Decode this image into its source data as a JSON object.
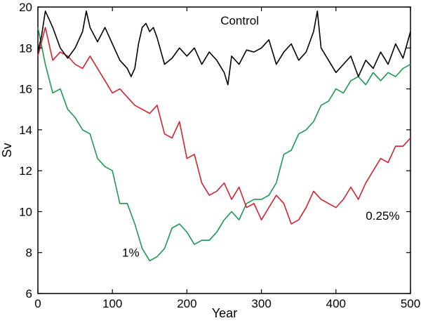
{
  "chart_data": {
    "type": "line",
    "xlabel": "Year",
    "ylabel": "Sv",
    "xlim": [
      0,
      500
    ],
    "ylim": [
      6,
      20
    ],
    "xticks": [
      0,
      100,
      200,
      300,
      400,
      500
    ],
    "yticks": [
      6,
      8,
      10,
      12,
      14,
      16,
      18,
      20
    ],
    "grid": false,
    "series": [
      {
        "name": "Control",
        "color": "#000000",
        "x": [
          0,
          5,
          10,
          20,
          30,
          40,
          50,
          60,
          65,
          70,
          80,
          90,
          100,
          110,
          120,
          125,
          130,
          135,
          140,
          145,
          150,
          155,
          160,
          170,
          180,
          190,
          200,
          210,
          220,
          230,
          240,
          250,
          255,
          260,
          270,
          280,
          290,
          300,
          310,
          320,
          330,
          340,
          350,
          360,
          370,
          375,
          380,
          390,
          400,
          410,
          420,
          430,
          440,
          450,
          460,
          470,
          480,
          490,
          500
        ],
        "y": [
          17.8,
          18.6,
          19.8,
          19.0,
          18.0,
          17.5,
          18.0,
          18.8,
          19.8,
          19.0,
          18.3,
          19.0,
          18.2,
          17.4,
          17.0,
          16.6,
          17.0,
          18.2,
          19.0,
          19.2,
          18.8,
          19.0,
          18.5,
          17.2,
          17.5,
          18.0,
          17.6,
          18.0,
          17.2,
          17.8,
          17.4,
          16.8,
          16.2,
          17.6,
          17.2,
          17.9,
          17.8,
          18.0,
          18.4,
          17.2,
          17.8,
          18.2,
          17.4,
          17.8,
          18.8,
          19.8,
          18.0,
          17.4,
          16.8,
          17.2,
          17.6,
          16.6,
          17.4,
          17.0,
          17.8,
          17.2,
          18.2,
          17.5,
          18.8
        ]
      },
      {
        "name": "0.25%",
        "color": "#d6202f",
        "x": [
          0,
          10,
          20,
          30,
          40,
          50,
          60,
          70,
          80,
          90,
          100,
          110,
          120,
          130,
          140,
          150,
          160,
          170,
          180,
          190,
          200,
          210,
          220,
          230,
          240,
          250,
          260,
          270,
          280,
          290,
          300,
          310,
          320,
          330,
          340,
          350,
          360,
          370,
          380,
          390,
          400,
          410,
          420,
          430,
          440,
          450,
          460,
          470,
          480,
          490,
          500
        ],
        "y": [
          17.6,
          19.0,
          17.4,
          17.8,
          17.6,
          17.2,
          17.0,
          17.6,
          17.0,
          16.4,
          15.8,
          16.0,
          15.6,
          15.2,
          15.0,
          14.8,
          15.2,
          13.8,
          13.6,
          14.4,
          12.6,
          12.8,
          11.4,
          10.8,
          11.0,
          11.4,
          10.6,
          11.2,
          10.2,
          10.4,
          9.6,
          10.2,
          10.8,
          10.4,
          9.4,
          9.6,
          10.2,
          11.0,
          10.6,
          10.4,
          10.2,
          10.6,
          11.2,
          10.6,
          11.4,
          12.0,
          12.6,
          12.4,
          13.2,
          13.2,
          13.6
        ]
      },
      {
        "name": "1%",
        "color": "#1a9a4f",
        "x": [
          0,
          10,
          20,
          30,
          40,
          50,
          60,
          70,
          80,
          90,
          100,
          110,
          120,
          130,
          140,
          150,
          160,
          170,
          180,
          190,
          200,
          210,
          220,
          230,
          240,
          250,
          260,
          270,
          280,
          290,
          300,
          310,
          320,
          330,
          340,
          350,
          360,
          370,
          380,
          390,
          400,
          410,
          420,
          430,
          440,
          450,
          460,
          470,
          480,
          490,
          500
        ],
        "y": [
          19.0,
          17.2,
          15.8,
          16.0,
          15.0,
          14.6,
          14.0,
          13.8,
          12.6,
          12.2,
          12.0,
          10.4,
          10.4,
          9.4,
          8.2,
          7.6,
          7.8,
          8.2,
          9.2,
          9.4,
          9.0,
          8.4,
          8.6,
          8.6,
          9.0,
          9.6,
          10.0,
          9.6,
          10.4,
          10.6,
          10.6,
          10.8,
          11.4,
          12.8,
          13.0,
          13.8,
          14.0,
          14.4,
          15.2,
          15.4,
          16.0,
          15.8,
          16.4,
          16.6,
          16.2,
          16.8,
          16.4,
          16.8,
          16.6,
          17.0,
          17.2
        ]
      }
    ],
    "annotations": [
      {
        "text": "Control",
        "x": 245,
        "y": 19.15
      },
      {
        "text": "0.25%",
        "x": 440,
        "y": 9.6
      },
      {
        "text": "1%",
        "x": 113,
        "y": 7.8
      }
    ]
  }
}
